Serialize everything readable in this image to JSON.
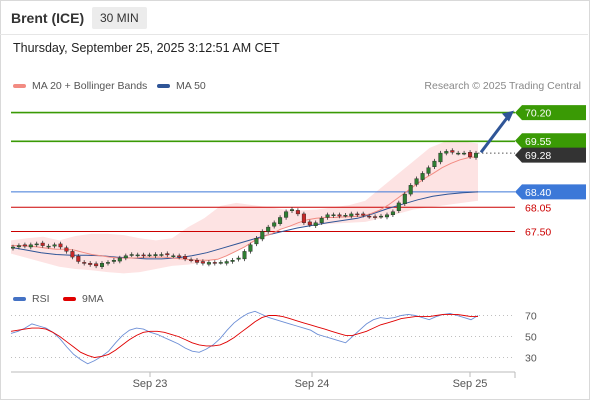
{
  "header": {
    "instrument": "Brent (ICE)",
    "timeframe": "30 MIN"
  },
  "datetime": "Thursday, September 25, 2025 3:12:51 AM CET",
  "legend": {
    "ma20": {
      "label": "MA 20 + Bollinger Bands",
      "color": "#f28b82"
    },
    "ma50": {
      "label": "MA 50",
      "color": "#2f5597"
    }
  },
  "copyright": "Research © 2025 Trading Central",
  "rsi_legend": {
    "rsi": {
      "label": "RSI",
      "color": "#4472c4"
    },
    "ma9": {
      "label": "9MA",
      "color": "#e00000"
    }
  },
  "levels": [
    {
      "value": 70.2,
      "label": "70.20",
      "kind": "resistance",
      "color": "#3a9a05"
    },
    {
      "value": 69.55,
      "label": "69.55",
      "kind": "resistance",
      "color": "#3a9a05"
    },
    {
      "value": 69.28,
      "label": "69.28",
      "kind": "last",
      "color": "#333333"
    },
    {
      "value": 68.4,
      "label": "68.40",
      "kind": "pivot",
      "color": "#3c78d8"
    },
    {
      "value": 68.05,
      "label": "68.05",
      "kind": "support",
      "color": "#cc0000"
    },
    {
      "value": 67.5,
      "label": "67.50",
      "kind": "support",
      "color": "#cc0000"
    }
  ],
  "chart_data": [
    {
      "type": "line",
      "subtype": "candlestick",
      "instrument": "Brent (ICE)",
      "interval": "30 MIN",
      "x_ticks": [
        "Sep 23",
        "Sep 24",
        "Sep 25"
      ],
      "ylim": [
        66.4,
        70.6
      ],
      "last_price": 69.28,
      "projection": {
        "from": 69.3,
        "to": 70.2
      },
      "price": [
        67.15,
        67.18,
        67.17,
        67.2,
        67.22,
        67.18,
        67.17,
        67.2,
        67.15,
        67.05,
        66.92,
        66.82,
        66.78,
        66.75,
        66.72,
        66.78,
        66.8,
        66.85,
        66.9,
        66.95,
        66.98,
        66.97,
        66.95,
        66.97,
        66.98,
        66.98,
        66.97,
        66.95,
        66.92,
        66.88,
        66.85,
        66.8,
        66.78,
        66.8,
        66.78,
        66.8,
        66.82,
        66.85,
        66.9,
        67.05,
        67.2,
        67.35,
        67.5,
        67.6,
        67.7,
        67.82,
        67.95,
        68.0,
        67.9,
        67.7,
        67.65,
        67.7,
        67.8,
        67.88,
        67.88,
        67.85,
        67.87,
        67.9,
        67.88,
        67.87,
        67.84,
        67.82,
        67.85,
        67.88,
        67.95,
        68.15,
        68.35,
        68.55,
        68.7,
        68.82,
        68.95,
        69.1,
        69.28,
        69.32,
        69.3,
        69.28,
        69.28,
        69.2,
        69.28
      ],
      "ma20": [
        67.18,
        67.18,
        67.17,
        67.15,
        67.12,
        67.1,
        67.1,
        67.08,
        67.03,
        66.98,
        66.95,
        66.92,
        66.9,
        66.9,
        66.9,
        66.92,
        66.92,
        66.92,
        66.9,
        66.88,
        66.86,
        66.85,
        66.85,
        66.87,
        66.95,
        67.05,
        67.15,
        67.28,
        67.38,
        67.45,
        67.55,
        67.62,
        67.7,
        67.77,
        67.8,
        67.82,
        67.82,
        67.83,
        67.84,
        67.85,
        67.9,
        67.98,
        68.1,
        68.25,
        68.4,
        68.55,
        68.7,
        68.82,
        68.95,
        69.05,
        69.13,
        69.18,
        69.2
      ],
      "ma50": [
        67.14,
        67.08,
        67.02,
        66.98,
        66.96,
        66.96,
        66.95,
        66.92,
        66.9,
        66.88,
        66.88,
        66.9,
        66.95,
        67.02,
        67.12,
        67.22,
        67.32,
        67.42,
        67.5,
        67.58,
        67.64,
        67.7,
        67.75,
        67.8,
        67.9,
        68.02,
        68.12,
        68.22,
        68.3,
        68.35,
        68.38,
        68.4
      ],
      "bb_upper": [
        67.3,
        67.35,
        67.38,
        67.3,
        67.4,
        67.45,
        67.45,
        67.42,
        67.35,
        67.3,
        67.35,
        67.6,
        67.8,
        68.08,
        68.15,
        68.1,
        68.05,
        68.0,
        67.98,
        68.0,
        68.05,
        68.1,
        68.2,
        68.5,
        68.8,
        69.1,
        69.4,
        69.55,
        69.55,
        69.5
      ],
      "bb_lower": [
        67.0,
        66.9,
        66.8,
        66.7,
        66.65,
        66.62,
        66.58,
        66.55,
        66.58,
        66.65,
        66.72,
        66.75,
        66.8,
        66.9,
        67.05,
        67.25,
        67.45,
        67.6,
        67.62,
        67.65,
        67.68,
        67.7,
        67.72,
        67.8,
        67.9,
        68.0,
        68.05,
        68.1,
        68.15,
        68.2
      ]
    },
    {
      "type": "line",
      "name": "RSI",
      "ylim": [
        20,
        80
      ],
      "y_ticks": [
        70,
        50,
        30
      ],
      "series": [
        {
          "name": "RSI",
          "values": [
            53,
            55,
            58,
            62,
            60,
            58,
            54,
            48,
            40,
            33,
            28,
            24,
            27,
            31,
            36,
            44,
            51,
            56,
            58,
            57,
            54,
            52,
            49,
            46,
            43,
            39,
            36,
            35,
            38,
            42,
            48,
            56,
            63,
            68,
            72,
            74,
            71,
            68,
            66,
            64,
            62,
            60,
            58,
            56,
            52,
            50,
            48,
            46,
            44,
            50,
            56,
            62,
            66,
            68,
            67,
            68,
            70,
            71,
            70,
            68,
            66,
            69,
            71,
            72,
            70,
            68,
            66,
            70
          ]
        },
        {
          "name": "9MA",
          "values": [
            55,
            56,
            57,
            58,
            58,
            57,
            54,
            50,
            45,
            40,
            35,
            32,
            30,
            31,
            33,
            37,
            42,
            47,
            51,
            54,
            55,
            55,
            54,
            52,
            50,
            47,
            44,
            42,
            41,
            41,
            42,
            45,
            49,
            54,
            59,
            64,
            68,
            70,
            70,
            69,
            67,
            65,
            63,
            61,
            59,
            57,
            55,
            53,
            51,
            51,
            53,
            55,
            58,
            61,
            63,
            65,
            67,
            68,
            69,
            69,
            69,
            70,
            71,
            71,
            71,
            70,
            69,
            69
          ]
        }
      ]
    }
  ]
}
